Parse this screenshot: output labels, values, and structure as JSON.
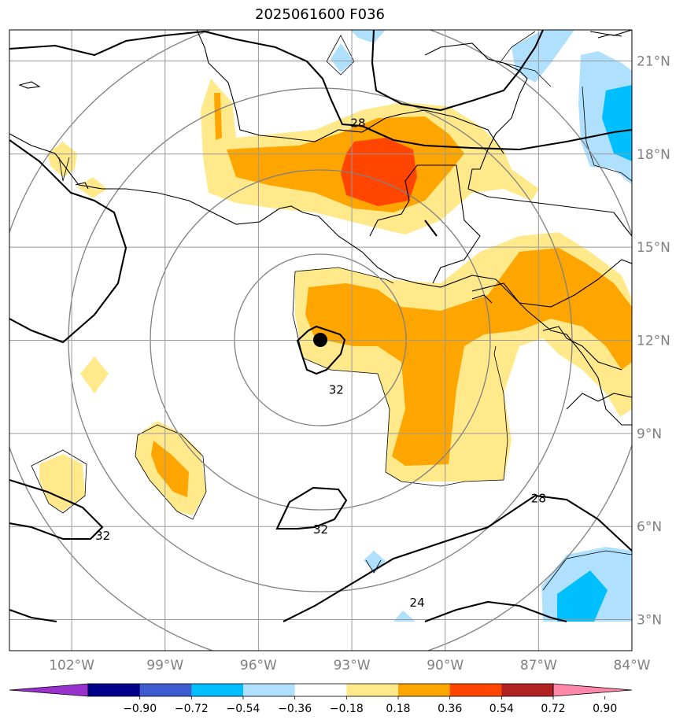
{
  "title": "2025061600 F036",
  "map": {
    "lon_range": [
      -104,
      -84
    ],
    "lat_range": [
      2,
      22
    ],
    "lon_ticks": [
      {
        "value": -102,
        "label": "102°W"
      },
      {
        "value": -99,
        "label": "99°W"
      },
      {
        "value": -96,
        "label": "96°W"
      },
      {
        "value": -93,
        "label": "93°W"
      },
      {
        "value": -90,
        "label": "90°W"
      },
      {
        "value": -87,
        "label": "87°W"
      },
      {
        "value": -84,
        "label": "84°W"
      }
    ],
    "lat_ticks": [
      {
        "value": 3,
        "label": "3°N"
      },
      {
        "value": 6,
        "label": "6°N"
      },
      {
        "value": 9,
        "label": "9°N"
      },
      {
        "value": 12,
        "label": "12°N"
      },
      {
        "value": 15,
        "label": "15°N"
      },
      {
        "value": 18,
        "label": "18°N"
      },
      {
        "value": 21,
        "label": "21°N"
      }
    ],
    "grid": true,
    "storm_center": {
      "lon": -93.7,
      "lat": 12.05
    },
    "range_ring_degrees": [
      3,
      5.5,
      8,
      10.5
    ],
    "contour_labels": [
      {
        "text": "28",
        "lon": -92.8,
        "lat": 19.0
      },
      {
        "text": "32",
        "lon": -93.5,
        "lat": 10.4
      },
      {
        "text": "32",
        "lon": -94.0,
        "lat": 5.9
      },
      {
        "text": "32",
        "lon": -101.0,
        "lat": 5.7
      },
      {
        "text": "28",
        "lon": -87.0,
        "lat": 6.9
      },
      {
        "text": "24",
        "lon": -90.9,
        "lat": 3.55
      }
    ],
    "colors": {
      "c018": "#ffe98a",
      "c036": "#ffa500",
      "c054": "#ff4500",
      "n018": "#afe0fe",
      "n036": "#00bfff"
    }
  },
  "colorbar": {
    "labels": [
      "−0.90",
      "−0.72",
      "−0.54",
      "−0.36",
      "−0.18",
      "0.18",
      "0.36",
      "0.54",
      "0.72",
      "0.90"
    ],
    "colors": [
      "#9932cc",
      "#00008b",
      "#3d5ccf",
      "#00bfff",
      "#afe0fe",
      "#ffffff",
      "#ffe98a",
      "#ffa500",
      "#ff4500",
      "#b22222",
      "#ff88aa"
    ]
  }
}
